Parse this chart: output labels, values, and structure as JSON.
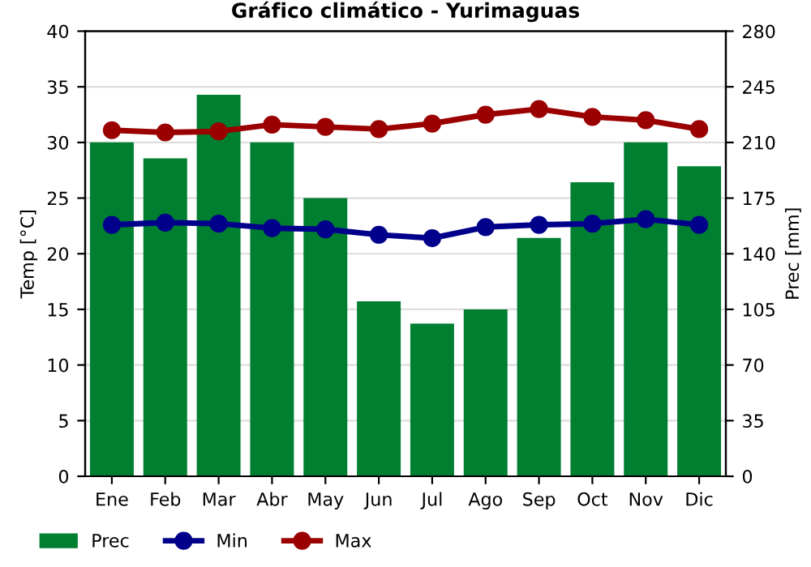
{
  "chart_data": {
    "type": "bar",
    "title": "Gráfico climático - Yurimaguas",
    "categories": [
      "Ene",
      "Feb",
      "Mar",
      "Abr",
      "May",
      "Jun",
      "Jul",
      "Ago",
      "Sep",
      "Oct",
      "Nov",
      "Dic"
    ],
    "series": [
      {
        "name": "Prec",
        "axis": "y2",
        "color": "#007f31",
        "values": [
          210,
          200,
          240,
          210,
          175,
          110,
          96,
          105,
          150,
          185,
          210,
          195
        ]
      },
      {
        "name": "Min",
        "type": "line",
        "axis": "y",
        "color": "#00008b",
        "values": [
          22.6,
          22.8,
          22.7,
          22.3,
          22.2,
          21.7,
          21.4,
          22.4,
          22.6,
          22.7,
          23.1,
          22.6
        ]
      },
      {
        "name": "Max",
        "type": "line",
        "axis": "y",
        "color": "#9b0000",
        "values": [
          31.1,
          30.9,
          31.0,
          31.6,
          31.4,
          31.2,
          31.7,
          32.5,
          33.0,
          32.3,
          32.0,
          31.2
        ]
      }
    ],
    "ylabel": "Temp [°C]",
    "y2label": "Prec [mm]",
    "ylim": [
      0,
      40
    ],
    "yticks": [
      0,
      5,
      10,
      15,
      20,
      25,
      30,
      35,
      40
    ],
    "y2lim": [
      0,
      280
    ],
    "y2ticks": [
      0,
      35,
      70,
      105,
      140,
      175,
      210,
      245,
      280
    ],
    "grid": "y",
    "legend": "bottom",
    "marker": "circle",
    "line_style": "solid"
  }
}
